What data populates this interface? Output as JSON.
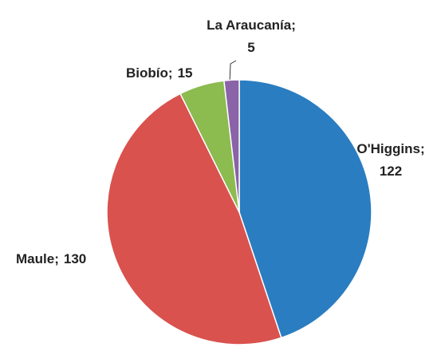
{
  "chart_data": {
    "type": "pie",
    "categories": [
      "O'Higgins",
      "Maule",
      "Biobío",
      "La Araucanía"
    ],
    "values": [
      122,
      130,
      15,
      5
    ],
    "colors": [
      "#2a7dc0",
      "#d9524e",
      "#8cbb50",
      "#8a63a8"
    ],
    "label_separator": ";"
  }
}
